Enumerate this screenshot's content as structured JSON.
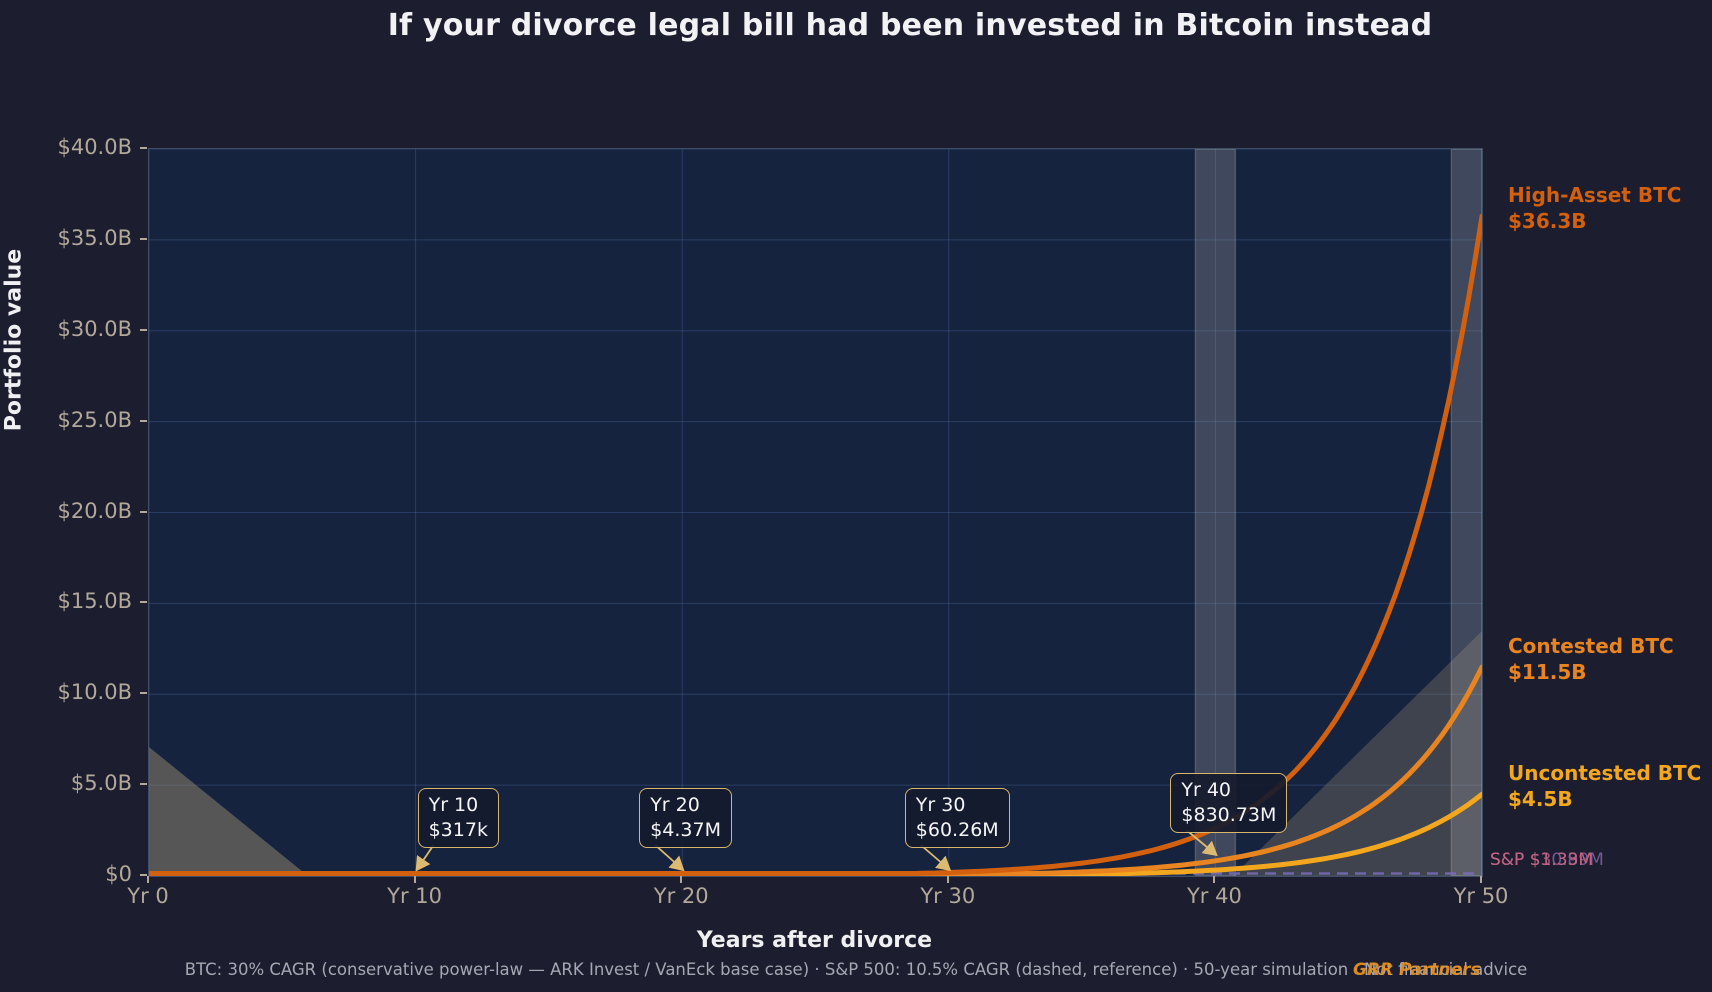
{
  "header": {
    "title": "If your divorce legal bill had been invested in Bitcoin instead"
  },
  "axes": {
    "y_label": "Portfolio value",
    "x_label": "Years after divorce"
  },
  "footer": {
    "note": "BTC: 30% CAGR (conservative power-law — ARK Invest / VanEck base case)  ·  S&P 500: 10.5% CAGR (dashed, reference)  ·  50-year simulation  ·  Not financial advice",
    "watermark": "GRR Partners"
  },
  "chart_data": {
    "type": "line",
    "title": "If your divorce legal bill had been invested in Bitcoin instead",
    "xlabel": "Years after divorce",
    "ylabel": "Portfolio value",
    "x_range_years": [
      0,
      50
    ],
    "x_tick_labels": [
      "Yr 0",
      "Yr 10",
      "Yr 20",
      "Yr 30",
      "Yr 40",
      "Yr 50"
    ],
    "x_tick_years": [
      0,
      10,
      20,
      30,
      40,
      50
    ],
    "y_range_usd": [
      0,
      40000000000
    ],
    "y_tick_labels": [
      "$0",
      "$5.0B",
      "$10.0B",
      "$15.0B",
      "$20.0B",
      "$25.0B",
      "$30.0B",
      "$35.0B",
      "$40.0B"
    ],
    "y_tick_values": [
      0,
      5000000000,
      10000000000,
      15000000000,
      20000000000,
      25000000000,
      30000000000,
      35000000000,
      40000000000
    ],
    "grid": true,
    "btc_cagr_pct": 30,
    "sp500_cagr_pct": 10.5,
    "series": [
      {
        "name": "High-Asset BTC",
        "end_value_usd": 36300000000,
        "end_label": "High-Asset BTC",
        "end_value_label": "$36.3B",
        "color": "#d2600e",
        "style": "solid"
      },
      {
        "name": "Contested BTC",
        "end_value_usd": 11500000000,
        "end_label": "Contested BTC",
        "end_value_label": "$11.5B",
        "color": "#e98520",
        "style": "solid"
      },
      {
        "name": "Uncontested BTC",
        "end_value_usd": 4500000000,
        "end_label": "Uncontested BTC",
        "end_value_label": "$4.5B",
        "color": "#f3a71f",
        "style": "solid"
      }
    ],
    "sp500_reference": {
      "style": "dashed",
      "line_color": "#7d6fc0",
      "end_labels": [
        {
          "text": "S&P $10.89M",
          "color": "#7b5fa0"
        },
        {
          "text": "S&P $3.39M",
          "color": "#a75a8a"
        },
        {
          "text": "S&P $1.33M",
          "color": "#c4647f"
        }
      ]
    },
    "annotations": [
      {
        "year": 10,
        "title": "Yr 10",
        "value": "$317k"
      },
      {
        "year": 20,
        "title": "Yr 20",
        "value": "$4.37M"
      },
      {
        "year": 30,
        "title": "Yr 30",
        "value": "$60.26M"
      },
      {
        "year": 40,
        "title": "Yr 40",
        "value": "$830.73M"
      }
    ],
    "shaded_band_years": [
      40,
      49.6
    ]
  }
}
